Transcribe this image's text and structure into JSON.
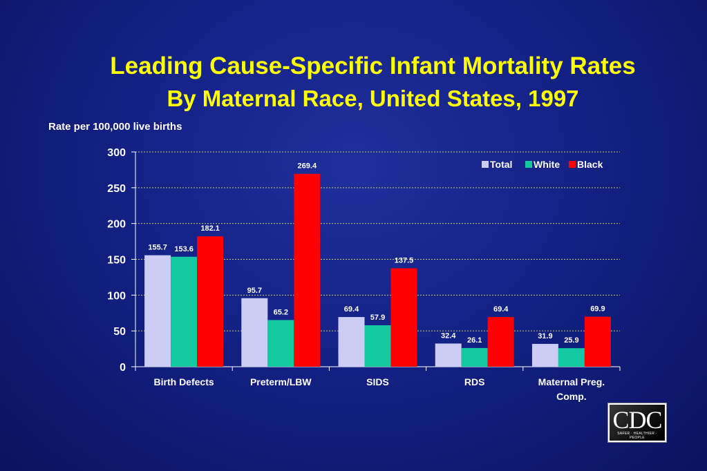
{
  "title_line1": "Leading Cause-Specific Infant Mortality Rates",
  "title_line2": "By Maternal Race, United States, 1997",
  "logo": {
    "text": "CDC",
    "tagline": "SAFER · HEALTHIER · PEOPLE"
  },
  "colors": {
    "title": "#ffff00",
    "Total": "#ccccf5",
    "White": "#14c8a0",
    "Black": "#ff0000",
    "grid": "#c8c880",
    "text": "#ffffff"
  },
  "chart_data": {
    "type": "bar",
    "ylabel": "Rate per 100,000 live births",
    "xlabel": "",
    "ylim": [
      0,
      300
    ],
    "yticks": [
      0,
      50,
      100,
      150,
      200,
      250,
      300
    ],
    "grid": true,
    "legend_position": "top-right",
    "categories": [
      [
        "Birth Defects"
      ],
      [
        "Preterm/LBW"
      ],
      [
        "SIDS"
      ],
      [
        "RDS"
      ],
      [
        "Maternal Preg.",
        "Comp."
      ]
    ],
    "series": [
      {
        "name": "Total",
        "values": [
          155.7,
          95.7,
          69.4,
          32.4,
          31.9
        ],
        "labels": [
          "155.7",
          "95.7",
          "69.4",
          "32.4",
          "31.9"
        ]
      },
      {
        "name": "White",
        "values": [
          153.6,
          65.2,
          57.9,
          26.1,
          25.9
        ],
        "labels": [
          "153.6",
          "65.2",
          "57.9",
          "26.1",
          "25.9"
        ]
      },
      {
        "name": "Black",
        "values": [
          182.1,
          269.4,
          137.5,
          69.4,
          69.9
        ],
        "labels": [
          "182.1",
          "269.4",
          "137.5",
          "69.4",
          "69.9"
        ]
      }
    ]
  }
}
